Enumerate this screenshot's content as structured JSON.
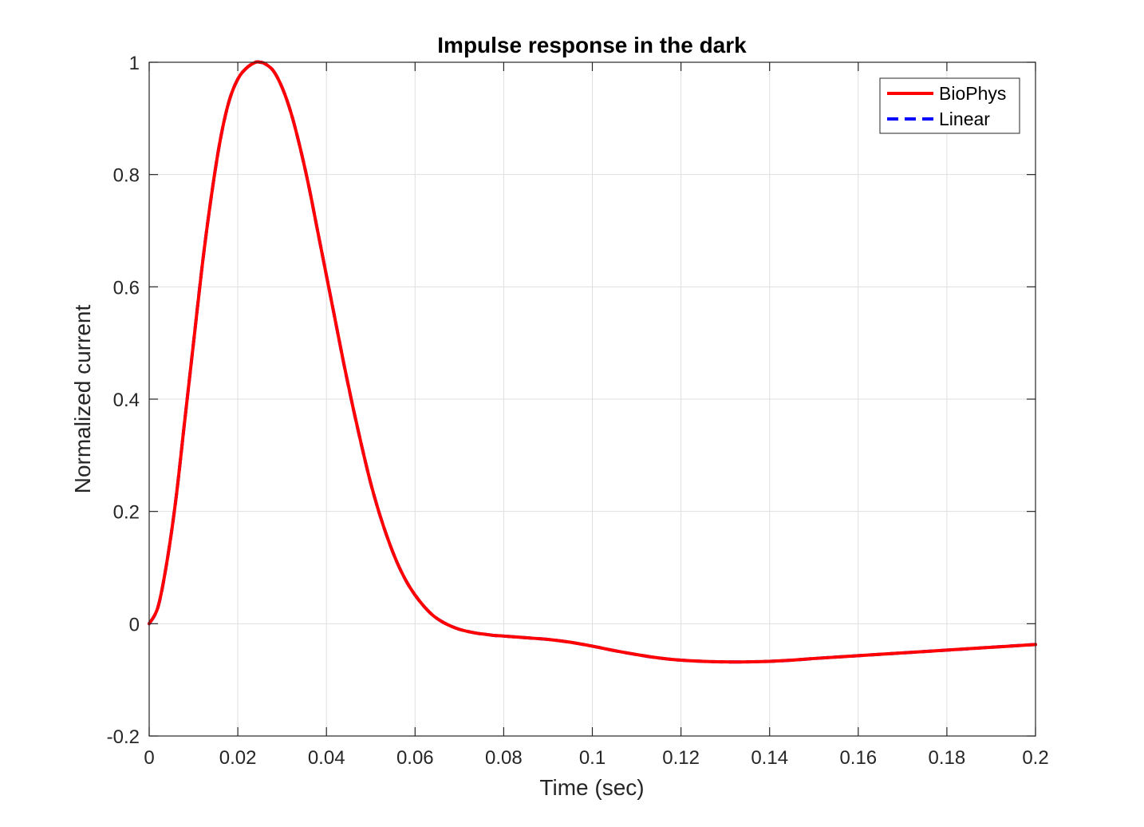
{
  "chart_data": {
    "type": "line",
    "title": "Impulse response in the dark",
    "xlabel": "Time (sec)",
    "ylabel": "Normalized current",
    "xlim": [
      0,
      0.2
    ],
    "ylim": [
      -0.2,
      1
    ],
    "xticks": [
      0,
      0.02,
      0.04,
      0.06,
      0.08,
      0.1,
      0.12,
      0.14,
      0.16,
      0.18,
      0.2
    ],
    "xtick_labels": [
      "0",
      "0.02",
      "0.04",
      "0.06",
      "0.08",
      "0.1",
      "0.12",
      "0.14",
      "0.16",
      "0.18",
      "0.2"
    ],
    "yticks": [
      -0.2,
      0,
      0.2,
      0.4,
      0.6,
      0.8,
      1
    ],
    "ytick_labels": [
      "-0.2",
      "0",
      "0.2",
      "0.4",
      "0.6",
      "0.8",
      "1"
    ],
    "grid": true,
    "legend_position": "top-right",
    "series": [
      {
        "name": "BioPhys",
        "color": "#ff0000",
        "style": "solid",
        "x": [
          0,
          0.002,
          0.004,
          0.006,
          0.008,
          0.01,
          0.012,
          0.014,
          0.016,
          0.018,
          0.02,
          0.022,
          0.024,
          0.025,
          0.026,
          0.028,
          0.03,
          0.032,
          0.034,
          0.036,
          0.038,
          0.04,
          0.042,
          0.044,
          0.046,
          0.048,
          0.05,
          0.052,
          0.054,
          0.056,
          0.058,
          0.06,
          0.062,
          0.064,
          0.066,
          0.068,
          0.07,
          0.072,
          0.074,
          0.076,
          0.078,
          0.08,
          0.085,
          0.09,
          0.095,
          0.1,
          0.105,
          0.11,
          0.115,
          0.12,
          0.125,
          0.13,
          0.135,
          0.14,
          0.145,
          0.15,
          0.16,
          0.17,
          0.18,
          0.19,
          0.2
        ],
        "y": [
          0,
          0.03,
          0.11,
          0.22,
          0.36,
          0.5,
          0.64,
          0.76,
          0.86,
          0.93,
          0.97,
          0.99,
          1.0,
          1.0,
          0.998,
          0.985,
          0.955,
          0.91,
          0.85,
          0.78,
          0.7,
          0.62,
          0.54,
          0.46,
          0.385,
          0.315,
          0.25,
          0.195,
          0.148,
          0.108,
          0.076,
          0.051,
          0.031,
          0.015,
          0.004,
          -0.004,
          -0.01,
          -0.014,
          -0.017,
          -0.019,
          -0.021,
          -0.022,
          -0.025,
          -0.028,
          -0.033,
          -0.04,
          -0.048,
          -0.055,
          -0.061,
          -0.065,
          -0.067,
          -0.068,
          -0.068,
          -0.067,
          -0.065,
          -0.062,
          -0.057,
          -0.052,
          -0.047,
          -0.042,
          -0.037
        ]
      },
      {
        "name": "Linear",
        "color": "#0000ff",
        "style": "dashed",
        "x": [
          0,
          0.002,
          0.004,
          0.006,
          0.008,
          0.01,
          0.012,
          0.014,
          0.016,
          0.018,
          0.02,
          0.022,
          0.024,
          0.025,
          0.026,
          0.028,
          0.03,
          0.032,
          0.034,
          0.036,
          0.038,
          0.04,
          0.042,
          0.044,
          0.046,
          0.048,
          0.05,
          0.052,
          0.054,
          0.056,
          0.058,
          0.06,
          0.062,
          0.064,
          0.066,
          0.068,
          0.07,
          0.072,
          0.074,
          0.076,
          0.078,
          0.08,
          0.085,
          0.09,
          0.095,
          0.1,
          0.105,
          0.11,
          0.115,
          0.12,
          0.125,
          0.13,
          0.135,
          0.14,
          0.145,
          0.15,
          0.16,
          0.17,
          0.18,
          0.19,
          0.2
        ],
        "y": [
          0,
          0.03,
          0.11,
          0.22,
          0.36,
          0.5,
          0.64,
          0.76,
          0.86,
          0.93,
          0.97,
          0.99,
          1.0,
          1.0,
          0.998,
          0.985,
          0.955,
          0.91,
          0.85,
          0.78,
          0.7,
          0.62,
          0.54,
          0.46,
          0.385,
          0.315,
          0.25,
          0.195,
          0.148,
          0.108,
          0.076,
          0.051,
          0.031,
          0.015,
          0.004,
          -0.004,
          -0.01,
          -0.014,
          -0.017,
          -0.019,
          -0.021,
          -0.022,
          -0.025,
          -0.028,
          -0.033,
          -0.04,
          -0.048,
          -0.055,
          -0.061,
          -0.065,
          -0.067,
          -0.068,
          -0.068,
          -0.067,
          -0.065,
          -0.062,
          -0.057,
          -0.052,
          -0.047,
          -0.042,
          -0.037
        ]
      }
    ]
  }
}
